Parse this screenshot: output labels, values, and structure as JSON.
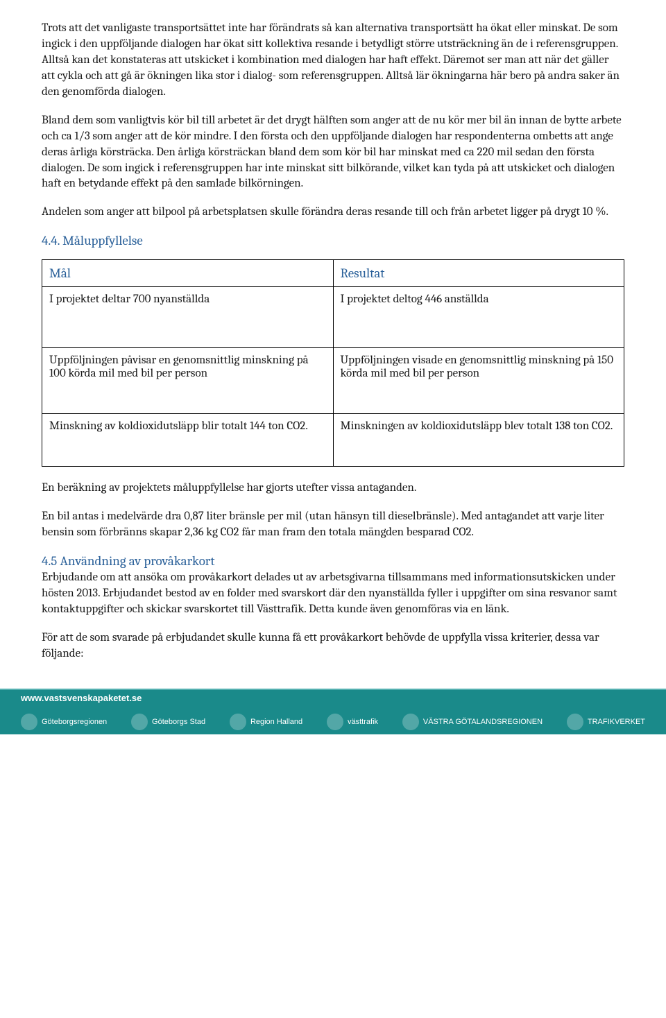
{
  "paragraphs": {
    "p1": "Trots att det vanligaste transportsättet inte har förändrats så kan alternativa transportsätt ha ökat eller minskat. De som ingick i den uppföljande dialogen har ökat sitt kollektiva resande i betydligt större utsträckning än de i referensgruppen. Alltså kan det konstateras att utskicket i kombination med dialogen har haft effekt. Däremot ser man att när det gäller att cykla och att gå är ökningen lika stor i dialog- som referensgruppen. Alltså lär ökningarna här bero på andra saker än den genomförda dialogen.",
    "p2": "Bland dem som vanligtvis kör bil till arbetet är det drygt hälften som anger att de nu kör mer bil än innan de bytte arbete och ca 1/3 som anger att de kör mindre. I den första och den uppföljande dialogen har respondenterna ombetts att ange deras årliga körsträcka. Den årliga körsträckan bland dem som kör bil har minskat med ca 220 mil sedan den första dialogen. De som ingick i referensgruppen har inte minskat sitt bilkörande, vilket kan tyda på att utskicket och dialogen haft en betydande effekt på den samlade bilkörningen.",
    "p3": "Andelen som anger att bilpool på arbetsplatsen skulle förändra deras resande till och från arbetet ligger på drygt 10 %.",
    "p4": "En beräkning av projektets måluppfyllelse har gjorts utefter vissa antaganden.",
    "p5": "En bil antas i medelvärde dra 0,87 liter bränsle per mil (utan hänsyn till dieselbränsle). Med antagandet att varje liter bensin som förbränns skapar 2,36 kg CO2 får man fram den totala mängden besparad CO2.",
    "p6": "Erbjudande om att ansöka om provåkarkort delades ut av arbetsgivarna tillsammans med informationsutskicken under hösten 2013. Erbjudandet bestod av en folder med svarskort där den nyanställda fyller i uppgifter om sina resvanor samt kontaktuppgifter och skickar svarskortet till Västtrafik. Detta kunde även genomföras via en länk.",
    "p7": "För att de som svarade på erbjudandet skulle kunna få ett provåkarkort behövde de uppfylla vissa kriterier, dessa var följande:"
  },
  "headings": {
    "h44": "4.4. Måluppfyllelse",
    "h45": "4.5 Användning av provåkarkort"
  },
  "table": {
    "header": {
      "left": "Mål",
      "right": "Resultat"
    },
    "rows": [
      {
        "left": "I projektet deltar 700 nyanställda",
        "right": "I projektet deltog 446 anställda"
      },
      {
        "left": "Uppföljningen påvisar en genomsnittlig minskning på 100 körda mil med bil per person",
        "right": "Uppföljningen visade en genomsnittlig minskning på 150 körda mil med bil per person"
      },
      {
        "left": "Minskning av koldioxidutsläpp blir totalt 144 ton CO2.",
        "right": "Minskningen av koldioxidutsläpp blev totalt 138 ton CO2."
      }
    ]
  },
  "footer": {
    "url": "www.vastsvenskapaketet.se",
    "logos": [
      {
        "name": "Göteborgsregionen"
      },
      {
        "name": "Göteborgs Stad"
      },
      {
        "name": "Region Halland"
      },
      {
        "name": "västtrafik"
      },
      {
        "name": "VÄSTRA GÖTALANDSREGIONEN"
      },
      {
        "name": "TRAFIKVERKET"
      }
    ]
  },
  "colors": {
    "heading_blue": "#2a6099",
    "footer_bg": "#1a8a8a",
    "text": "#1a1a1a",
    "border": "#000000"
  }
}
